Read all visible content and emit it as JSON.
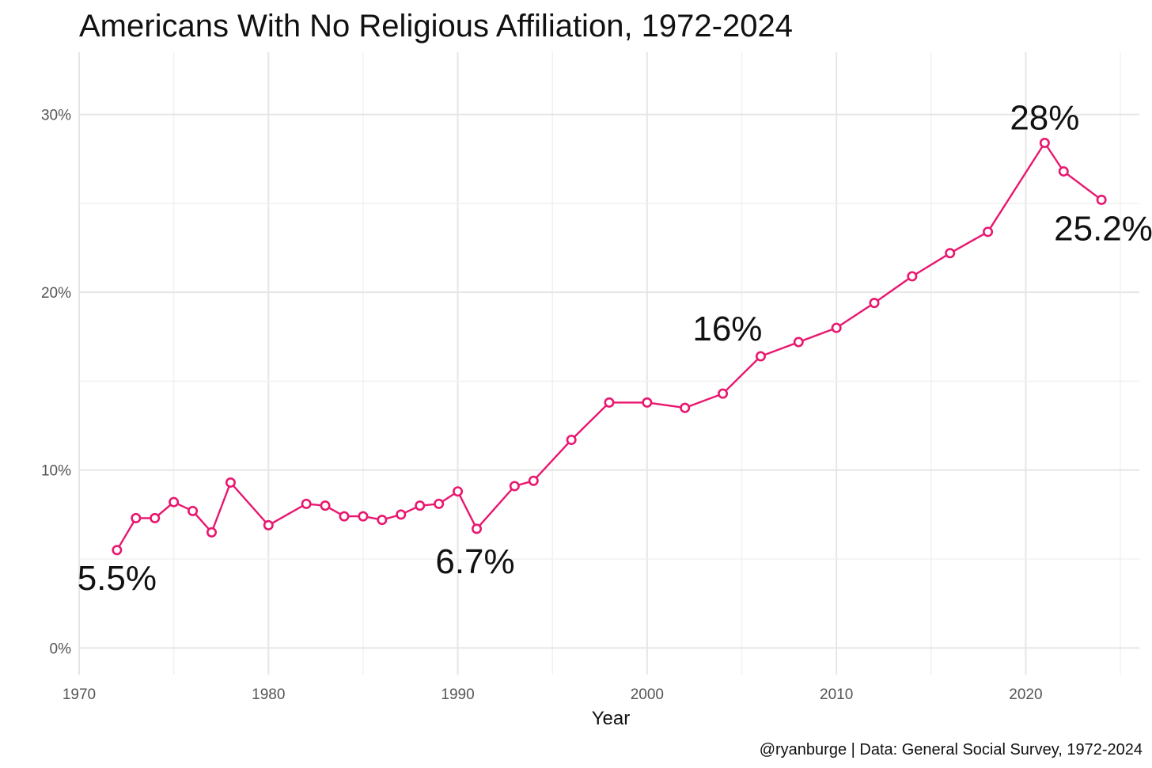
{
  "chart_data": {
    "type": "line",
    "title": "Americans With No Religious Affiliation, 1972-2024",
    "xlabel": "Year",
    "ylabel": "",
    "caption": "@ryanburge | Data: General Social Survey, 1972-2024",
    "xlim": [
      1970,
      2026
    ],
    "ylim": [
      -1.5,
      33.5
    ],
    "x_ticks": [
      1970,
      1980,
      1990,
      2000,
      2010,
      2020
    ],
    "x_tick_labels": [
      "1970",
      "1980",
      "1990",
      "2000",
      "2010",
      "2020"
    ],
    "y_ticks": [
      0,
      10,
      20,
      30
    ],
    "y_tick_labels": [
      "0%",
      "10%",
      "20%",
      "30%"
    ],
    "grid": true,
    "legend": "none",
    "line_color": "#e8176f",
    "marker_fill": "#ffffff",
    "series": [
      {
        "x": [
          1972,
          1973,
          1974,
          1975,
          1976,
          1977,
          1978,
          1980,
          1982,
          1983,
          1984,
          1985,
          1986,
          1987,
          1988,
          1989,
          1990,
          1991,
          1993,
          1994,
          1996,
          1998,
          2000,
          2002,
          2004,
          2006,
          2008,
          2010,
          2012,
          2014,
          2016,
          2018,
          2021,
          2022,
          2024
        ],
        "y": [
          5.5,
          7.3,
          7.3,
          8.2,
          7.7,
          6.5,
          9.3,
          6.9,
          8.1,
          8.0,
          7.4,
          7.4,
          7.2,
          7.5,
          8.0,
          8.1,
          8.8,
          6.7,
          9.1,
          9.4,
          11.7,
          13.8,
          13.8,
          13.5,
          14.3,
          16.4,
          17.2,
          18.0,
          19.4,
          20.9,
          22.2,
          23.4,
          28.4,
          26.8,
          25.2
        ]
      }
    ],
    "annotations": [
      {
        "text": "5.5%",
        "x": 1972,
        "y": 5.5
      },
      {
        "text": "6.7%",
        "x": 1991,
        "y": 6.7
      },
      {
        "text": "16%",
        "x": 2006,
        "y": 16.4
      },
      {
        "text": "28%",
        "x": 2021,
        "y": 28.4
      },
      {
        "text": "25.2%",
        "x": 2024,
        "y": 25.2
      }
    ]
  }
}
